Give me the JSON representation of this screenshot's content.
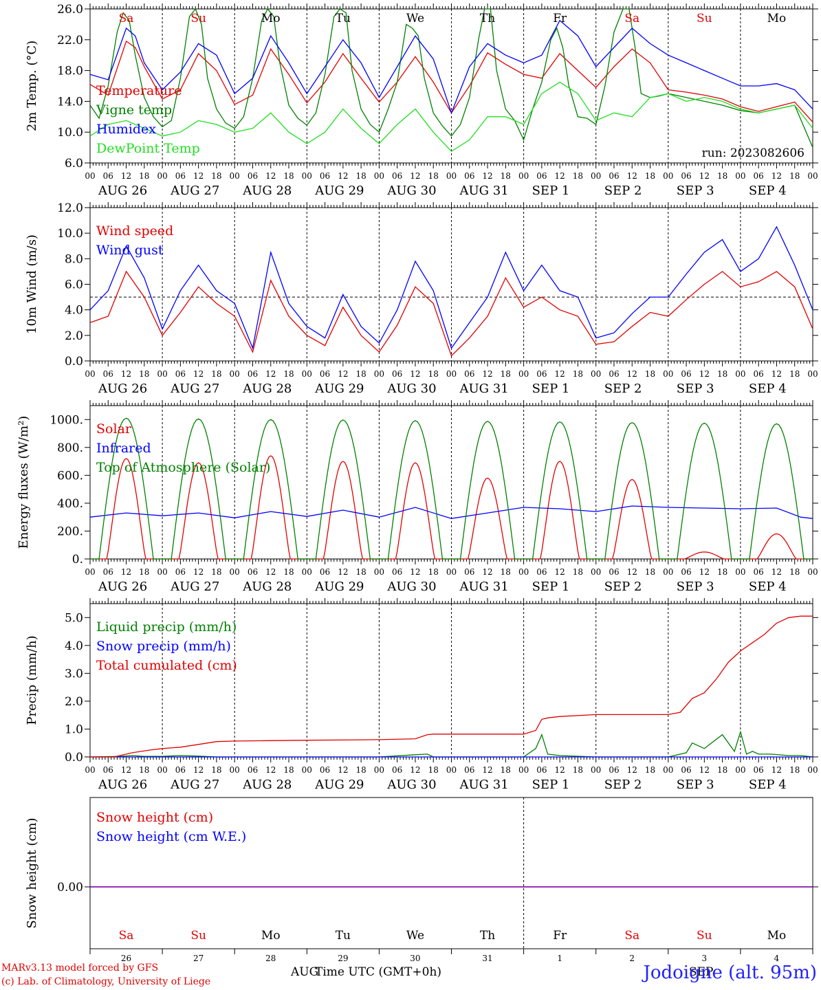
{
  "footer": {
    "credit1": "MARv3.13 model forced by GFS",
    "credit2": "(c) Lab. of Climatology, University of Liege",
    "xlabel": "Time UTC (GMT+0h)",
    "month_left": "AUG",
    "month_right": "SEP",
    "station": "Jodoigne (alt. 95m)"
  },
  "colors": {
    "red": "#e00000",
    "green": "#008000",
    "blue": "#0000ff",
    "lightgreen": "#22dd22",
    "purple": "#8000a0"
  },
  "days": [
    {
      "dow": "Sa",
      "date": "AUG 26",
      "num": "26",
      "weekend": true
    },
    {
      "dow": "Su",
      "date": "AUG 27",
      "num": "27",
      "weekend": true
    },
    {
      "dow": "Mo",
      "date": "AUG 28",
      "num": "28",
      "weekend": false
    },
    {
      "dow": "Tu",
      "date": "AUG 29",
      "num": "29",
      "weekend": false
    },
    {
      "dow": "We",
      "date": "AUG 30",
      "num": "30",
      "weekend": false
    },
    {
      "dow": "Th",
      "date": "AUG 31",
      "num": "31",
      "weekend": false
    },
    {
      "dow": "Fr",
      "date": "SEP  1",
      "num": "1",
      "weekend": false
    },
    {
      "dow": "Sa",
      "date": "SEP  2",
      "num": "2",
      "weekend": true
    },
    {
      "dow": "Su",
      "date": "SEP  3",
      "num": "3",
      "weekend": true
    },
    {
      "dow": "Mo",
      "date": "SEP  4",
      "num": "4",
      "weekend": false
    }
  ],
  "hour_labels": [
    "00",
    "06",
    "12",
    "18"
  ],
  "chart_data": [
    {
      "type": "line",
      "ylabel": "2m Temp. (°C)",
      "ylim": [
        6,
        26
      ],
      "yticks": [
        6,
        10,
        14,
        18,
        22,
        26
      ],
      "ytick_labels": [
        "6.0",
        "10.0",
        "14.0",
        "18.0",
        "22.0",
        "26.0"
      ],
      "annotation": "run: 2023082606",
      "x_unit": "hours since AUG 26 00 UTC",
      "series": [
        {
          "name": "Temperature",
          "color": "red",
          "x": [
            0,
            6,
            12,
            15,
            18,
            24,
            30,
            36,
            42,
            48,
            54,
            60,
            66,
            72,
            78,
            84,
            90,
            96,
            102,
            108,
            114,
            120,
            126,
            132,
            138,
            144,
            150,
            156,
            162,
            168,
            174,
            180,
            186,
            192,
            198,
            204,
            210,
            216,
            222,
            228,
            234,
            240
          ],
          "y": [
            16.2,
            14.8,
            21.8,
            21.0,
            18.5,
            14.3,
            15.5,
            20.2,
            18.0,
            13.6,
            14.8,
            20.8,
            17.5,
            13.8,
            16.5,
            20.2,
            17.0,
            13.9,
            16.5,
            19.8,
            16.5,
            12.5,
            16.0,
            20.3,
            18.8,
            17.5,
            17.0,
            20.2,
            18.0,
            15.8,
            18.5,
            20.8,
            19.0,
            15.5,
            15.2,
            14.8,
            14.3,
            13.3,
            12.7,
            13.3,
            13.9,
            11.3
          ]
        },
        {
          "name": "Vigne temp",
          "color": "green",
          "x": [
            0,
            3,
            6,
            9,
            11,
            13,
            15,
            18,
            21,
            24,
            27,
            30,
            33,
            35,
            37,
            39,
            42,
            45,
            48,
            51,
            54,
            57,
            59,
            61,
            63,
            66,
            69,
            72,
            75,
            78,
            81,
            83,
            85,
            87,
            90,
            93,
            96,
            99,
            102,
            105,
            107,
            109,
            111,
            114,
            117,
            120,
            123,
            126,
            129,
            131,
            133,
            135,
            138,
            141,
            144,
            147,
            150,
            153,
            155,
            157,
            159,
            162,
            165,
            168,
            171,
            174,
            177,
            179,
            181,
            183,
            186,
            189,
            192,
            198,
            204,
            210,
            216,
            222,
            228,
            234,
            240
          ],
          "y": [
            13.5,
            11.8,
            16.0,
            23.0,
            25.5,
            24.5,
            20.0,
            14.5,
            12.0,
            10.7,
            11.5,
            17.0,
            25.0,
            26.0,
            24.0,
            17.0,
            13.0,
            11.2,
            10.5,
            12.0,
            17.0,
            24.5,
            26.0,
            25.0,
            19.0,
            13.5,
            11.8,
            10.9,
            12.5,
            17.5,
            25.0,
            26.0,
            25.5,
            18.0,
            13.0,
            11.0,
            10.0,
            13.0,
            16.5,
            24.0,
            23.5,
            22.5,
            17.0,
            12.5,
            10.8,
            9.5,
            11.0,
            14.5,
            22.0,
            26.0,
            26.0,
            18.0,
            13.0,
            11.5,
            9.0,
            13.0,
            16.5,
            22.0,
            23.5,
            21.0,
            16.0,
            12.0,
            11.8,
            11.0,
            16.0,
            23.0,
            26.0,
            26.0,
            21.0,
            15.0,
            14.5,
            14.7,
            15.0,
            14.5,
            14.0,
            13.5,
            12.8,
            12.5,
            13.0,
            13.5,
            8.0
          ]
        },
        {
          "name": "Humidex",
          "color": "blue",
          "x": [
            0,
            6,
            12,
            15,
            18,
            24,
            30,
            36,
            42,
            48,
            54,
            60,
            66,
            72,
            78,
            84,
            90,
            96,
            102,
            108,
            114,
            120,
            126,
            132,
            138,
            144,
            150,
            156,
            162,
            168,
            174,
            180,
            186,
            192,
            198,
            204,
            210,
            216,
            222,
            228,
            234,
            240
          ],
          "y": [
            17.5,
            16.8,
            23.5,
            22.5,
            19.0,
            15.5,
            17.8,
            21.5,
            20.0,
            15.0,
            17.0,
            22.5,
            19.0,
            15.0,
            18.5,
            22.0,
            19.0,
            14.5,
            18.5,
            22.5,
            19.5,
            12.5,
            18.5,
            21.5,
            20.0,
            19.0,
            20.0,
            24.5,
            22.5,
            18.5,
            21.0,
            23.5,
            21.5,
            20.0,
            19.0,
            18.0,
            17.0,
            16.0,
            16.0,
            16.3,
            15.5,
            13.0
          ]
        },
        {
          "name": "DewPoint Temp",
          "color": "lightgreen",
          "x": [
            0,
            6,
            12,
            18,
            24,
            30,
            36,
            42,
            48,
            54,
            60,
            66,
            72,
            78,
            84,
            90,
            96,
            102,
            108,
            114,
            120,
            126,
            132,
            138,
            144,
            150,
            156,
            162,
            168,
            174,
            180,
            186,
            192,
            198,
            204,
            210,
            216,
            222,
            228,
            234,
            240
          ],
          "y": [
            9.5,
            11.0,
            11.5,
            10.5,
            9.5,
            10.0,
            11.5,
            11.0,
            10.0,
            10.5,
            12.5,
            10.0,
            8.5,
            10.0,
            13.0,
            10.5,
            8.5,
            11.0,
            13.0,
            10.0,
            7.5,
            9.0,
            12.0,
            12.0,
            11.0,
            15.0,
            16.5,
            15.0,
            11.5,
            12.5,
            12.0,
            14.5,
            15.0,
            14.0,
            14.5,
            14.0,
            13.0,
            12.5,
            13.0,
            13.5,
            10.5
          ]
        }
      ]
    },
    {
      "type": "line",
      "ylabel": "10m Wind (m/s)",
      "ylim": [
        0,
        12
      ],
      "yticks": [
        0,
        2,
        4,
        6,
        8,
        10,
        12
      ],
      "ytick_labels": [
        "0.0",
        "2.0",
        "4.0",
        "6.0",
        "8.0",
        "10.0",
        "12.0"
      ],
      "reference_line": 5,
      "x_unit": "hours since AUG 26 00 UTC",
      "series": [
        {
          "name": "Wind speed",
          "color": "red",
          "x": [
            0,
            6,
            12,
            18,
            24,
            30,
            36,
            42,
            48,
            54,
            60,
            66,
            72,
            78,
            84,
            90,
            96,
            102,
            108,
            114,
            120,
            126,
            132,
            138,
            144,
            150,
            156,
            162,
            168,
            174,
            180,
            186,
            192,
            198,
            204,
            210,
            216,
            222,
            228,
            234,
            240
          ],
          "y": [
            3.0,
            3.5,
            7.0,
            5.0,
            2.0,
            3.8,
            5.8,
            4.5,
            3.5,
            0.7,
            6.3,
            3.5,
            2.0,
            1.2,
            4.2,
            2.0,
            0.7,
            2.8,
            5.8,
            4.5,
            0.4,
            1.8,
            3.5,
            6.5,
            4.2,
            5.0,
            4.0,
            3.5,
            1.3,
            1.5,
            2.7,
            3.8,
            3.5,
            4.8,
            6.0,
            7.0,
            5.8,
            6.2,
            7.0,
            5.8,
            2.5
          ]
        },
        {
          "name": "Wind gust",
          "color": "blue",
          "x": [
            0,
            6,
            12,
            18,
            24,
            30,
            36,
            42,
            48,
            54,
            60,
            66,
            72,
            78,
            84,
            90,
            96,
            102,
            108,
            114,
            120,
            126,
            132,
            138,
            144,
            150,
            156,
            162,
            168,
            174,
            180,
            186,
            192,
            198,
            204,
            210,
            216,
            222,
            228,
            234,
            240
          ],
          "y": [
            4.0,
            5.5,
            9.0,
            6.5,
            2.5,
            5.5,
            7.5,
            5.5,
            4.5,
            1.0,
            8.5,
            4.5,
            2.7,
            1.8,
            5.2,
            2.7,
            1.4,
            4.0,
            7.8,
            5.5,
            1.0,
            3.0,
            5.0,
            8.5,
            5.5,
            7.5,
            5.5,
            5.0,
            1.8,
            2.2,
            3.7,
            5.0,
            5.0,
            6.8,
            8.5,
            9.5,
            7.0,
            8.0,
            10.5,
            7.5,
            4.0
          ]
        }
      ]
    },
    {
      "type": "line",
      "ylabel": "Energy fluxes (W/m²)",
      "ylim": [
        0,
        1100
      ],
      "yticks": [
        0,
        200,
        400,
        600,
        800,
        1000
      ],
      "ytick_labels": [
        "0.",
        "200.",
        "400.",
        "600.",
        "800.",
        "1000."
      ],
      "x_unit": "hours since AUG 26 00 UTC",
      "daily_peaks": {
        "Top of Atmosphere (Solar)": [
          1010,
          1005,
          1000,
          997,
          992,
          987,
          983,
          978,
          974,
          970
        ],
        "Solar": [
          720,
          690,
          740,
          700,
          690,
          580,
          700,
          570,
          50,
          180
        ]
      },
      "series": [
        {
          "name": "Solar",
          "color": "red"
        },
        {
          "name": "Infrared",
          "color": "blue",
          "x": [
            0,
            12,
            24,
            36,
            48,
            60,
            72,
            84,
            96,
            108,
            120,
            132,
            144,
            156,
            168,
            180,
            192,
            204,
            216,
            228,
            236,
            240
          ],
          "y": [
            300,
            330,
            310,
            330,
            295,
            340,
            305,
            350,
            300,
            370,
            290,
            330,
            370,
            360,
            340,
            380,
            370,
            365,
            360,
            365,
            300,
            290
          ]
        },
        {
          "name": "Top of Atmosphere (Solar)",
          "color": "green"
        }
      ]
    },
    {
      "type": "line",
      "ylabel": "Precip (mm/h)",
      "ylim": [
        0,
        5.5
      ],
      "yticks": [
        0,
        1,
        2,
        3,
        4,
        5
      ],
      "ytick_labels": [
        "0.0",
        "1.0",
        "2.0",
        "3.0",
        "4.0",
        "5.0"
      ],
      "x_unit": "hours since AUG 26 00 UTC",
      "series": [
        {
          "name": "Liquid precip (mm/h)",
          "color": "green",
          "x": [
            0,
            10,
            14,
            18,
            24,
            30,
            36,
            42,
            48,
            96,
            108,
            112,
            114,
            120,
            144,
            148,
            150,
            152,
            156,
            168,
            192,
            198,
            200,
            204,
            210,
            214,
            216,
            218,
            220,
            222,
            226,
            232,
            236,
            240
          ],
          "y": [
            0,
            0.02,
            0.05,
            0.02,
            0.02,
            0.05,
            0.03,
            0,
            0,
            0,
            0.08,
            0.1,
            0,
            0,
            0,
            0.3,
            0.8,
            0.1,
            0.05,
            0,
            0,
            0.15,
            0.5,
            0.3,
            0.8,
            0.2,
            0.9,
            0.1,
            0.2,
            0.1,
            0.1,
            0.05,
            0.05,
            0
          ]
        },
        {
          "name": "Snow precip (mm/h)",
          "color": "blue",
          "x": [
            0,
            240
          ],
          "y": [
            0,
            0
          ]
        },
        {
          "name": "Total cumulated (cm)",
          "color": "red",
          "x": [
            0,
            8,
            14,
            20,
            24,
            30,
            36,
            42,
            48,
            56,
            72,
            96,
            108,
            112,
            114,
            120,
            144,
            148,
            150,
            152,
            156,
            168,
            192,
            196,
            200,
            204,
            208,
            212,
            216,
            220,
            224,
            228,
            232,
            236,
            240
          ],
          "y": [
            0,
            0,
            0.15,
            0.25,
            0.3,
            0.35,
            0.45,
            0.55,
            0.57,
            0.58,
            0.6,
            0.62,
            0.65,
            0.8,
            0.82,
            0.82,
            0.82,
            0.95,
            1.35,
            1.4,
            1.45,
            1.52,
            1.52,
            1.6,
            2.1,
            2.3,
            2.8,
            3.4,
            3.8,
            4.1,
            4.4,
            4.8,
            5.0,
            5.05,
            5.05
          ]
        }
      ]
    },
    {
      "type": "line",
      "ylabel": "Snow height (cm)",
      "yticks": [
        0
      ],
      "ytick_labels": [
        "0.00"
      ],
      "x_unit": "hours since AUG 26 00 UTC",
      "series": [
        {
          "name": "Snow height (cm)",
          "color": "red",
          "x": [
            0,
            240
          ],
          "y": [
            0,
            0
          ]
        },
        {
          "name": "Snow height (cm W.E.)",
          "color": "blue",
          "x": [
            0,
            240
          ],
          "y": [
            0,
            0
          ]
        }
      ]
    }
  ]
}
